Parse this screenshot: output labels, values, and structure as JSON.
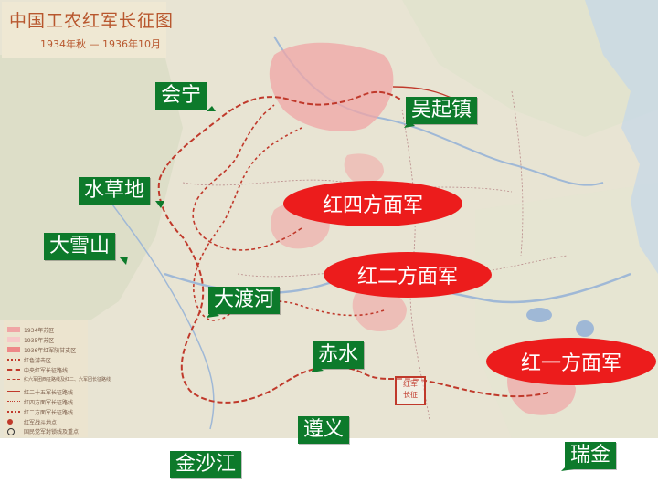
{
  "title": {
    "main": "中国工农红军长征图",
    "sub": "1934年秋 — 1936年10月"
  },
  "places": {
    "huining": "会宁",
    "wuqizhen": "吴起镇",
    "shuicaodi": "水草地",
    "daxueshan": "大雪山",
    "daduhe": "大渡河",
    "chishui": "赤水",
    "zunyi": "遵义",
    "jinshajiang": "金沙江",
    "ruijin": "瑞金"
  },
  "armies": {
    "fourth_front": "红四方面军",
    "second_front": "红二方面军",
    "first_front": "红一方面军"
  },
  "legend": {
    "items": [
      "1934年苏区",
      "1935年苏区",
      "1936年红军陕甘支区",
      "红色游击区",
      "中央红军长征路线",
      "红六军团西征路线及红二、六军团长征路线",
      "红二十五军长征路线",
      "红四方面军长征路线",
      "红二方面军长征路线",
      "红军战斗地点",
      "国民党军封锁线及重点"
    ]
  },
  "stamp_text": "红军长征",
  "colors": {
    "label_green": "#0d7a2b",
    "army_red": "#ec1c1c",
    "map_paper": "#e8e4d3",
    "soviet_pink": "#f0a5a5",
    "route_red": "#c0392b",
    "water_blue": "#9fb8d6"
  }
}
